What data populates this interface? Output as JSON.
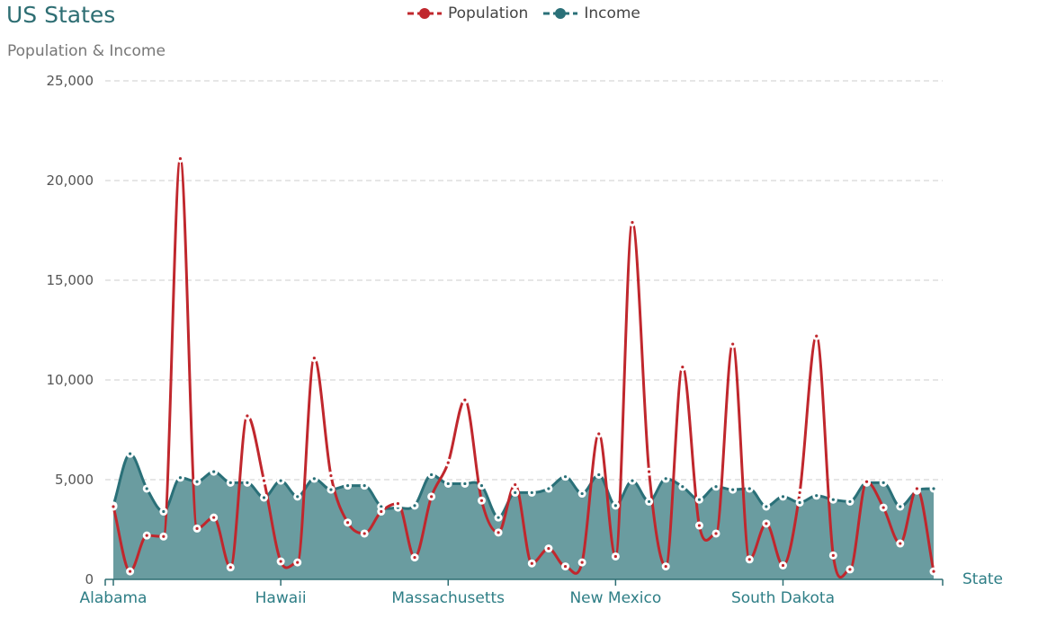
{
  "chart_data": {
    "type": "area",
    "title": "US States",
    "subtitle": "Population & Income",
    "xlabel": "State",
    "ylabel": "",
    "ylim": [
      0,
      25000
    ],
    "yticks": [
      "0",
      "5,000",
      "10,000",
      "15,000",
      "20,000",
      "25,000"
    ],
    "ytick_values": [
      0,
      5000,
      10000,
      15000,
      20000,
      25000
    ],
    "x_tick_labels": [
      {
        "index": 0,
        "label": "Alabama"
      },
      {
        "index": 10,
        "label": "Hawaii"
      },
      {
        "index": 20,
        "label": "Massachusetts"
      },
      {
        "index": 30,
        "label": "New Mexico"
      },
      {
        "index": 40,
        "label": "South Dakota"
      }
    ],
    "grid": true,
    "legend_position": "top-center",
    "series": [
      {
        "name": "Population",
        "kind": "line",
        "color": "#c0272d",
        "values": [
          3650,
          400,
          2200,
          2150,
          21100,
          2550,
          3100,
          600,
          8200,
          4950,
          900,
          850,
          11100,
          5200,
          2850,
          2300,
          3400,
          3800,
          1100,
          4150,
          5850,
          9000,
          3950,
          2350,
          4750,
          800,
          1550,
          650,
          850,
          7300,
          1150,
          17900,
          5400,
          650,
          10650,
          2700,
          2300,
          11800,
          1000,
          2800,
          700,
          4350,
          12200,
          1200,
          500,
          4900,
          3600,
          1800,
          4550,
          400
        ]
      },
      {
        "name": "Income",
        "kind": "area",
        "color": "#2a7078",
        "values": [
          3700,
          6300,
          4550,
          3400,
          5100,
          4900,
          5400,
          4850,
          4850,
          4100,
          4950,
          4150,
          5050,
          4500,
          4700,
          4700,
          3650,
          3600,
          3700,
          5250,
          4800,
          4800,
          4700,
          3100,
          4350,
          4350,
          4550,
          5150,
          4300,
          5250,
          3700,
          4950,
          3900,
          5050,
          4650,
          4000,
          4650,
          4500,
          4550,
          3650,
          4150,
          3850,
          4200,
          4000,
          3900,
          4850,
          4850,
          3650,
          4450,
          4550
        ]
      }
    ]
  }
}
